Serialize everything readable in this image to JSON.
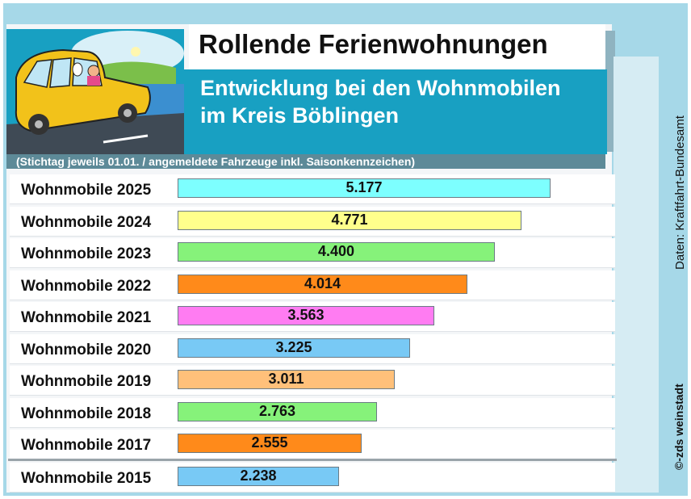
{
  "title": "Rollende Ferienwohnungen",
  "subtitle_line1": "Entwicklung bei den Wohnmobilen",
  "subtitle_line2": "im Kreis Böblingen",
  "note": "(Stichtag jeweils 01.01.  /  angemeldete Fahrzeuge inkl. Saisonkennzeichen)",
  "source": "Daten: Kraftfahrt-Bundesamt",
  "credit": "©-zds  weinstadt",
  "illustration_icon": "camper-van-illustration",
  "chart_data": {
    "type": "bar",
    "orientation": "horizontal",
    "title": "Rollende Ferienwohnungen",
    "subtitle": "Entwicklung bei den Wohnmobilen im Kreis Böblingen",
    "categories": [
      "Wohnmobile 2025",
      "Wohnmobile 2024",
      "Wohnmobile 2023",
      "Wohnmobile 2022",
      "Wohnmobile 2021",
      "Wohnmobile 2020",
      "Wohnmobile 2019",
      "Wohnmobile 2018",
      "Wohnmobile 2017",
      "Wohnmobile 2015"
    ],
    "values": [
      5177,
      4771,
      4400,
      4014,
      3563,
      3225,
      3011,
      2763,
      2555,
      2238
    ],
    "value_labels": [
      "5.177",
      "4.771",
      "4.400",
      "4.014",
      "3.563",
      "3.225",
      "3.011",
      "2.763",
      "2.555",
      "2.238"
    ],
    "colors": [
      "#7dffff",
      "#ffff8c",
      "#86f27a",
      "#ff8a1a",
      "#ff7cf2",
      "#78c9f5",
      "#ffc07a",
      "#86f27a",
      "#ff8a1a",
      "#78c9f5"
    ],
    "grid": false,
    "legend": "none"
  }
}
